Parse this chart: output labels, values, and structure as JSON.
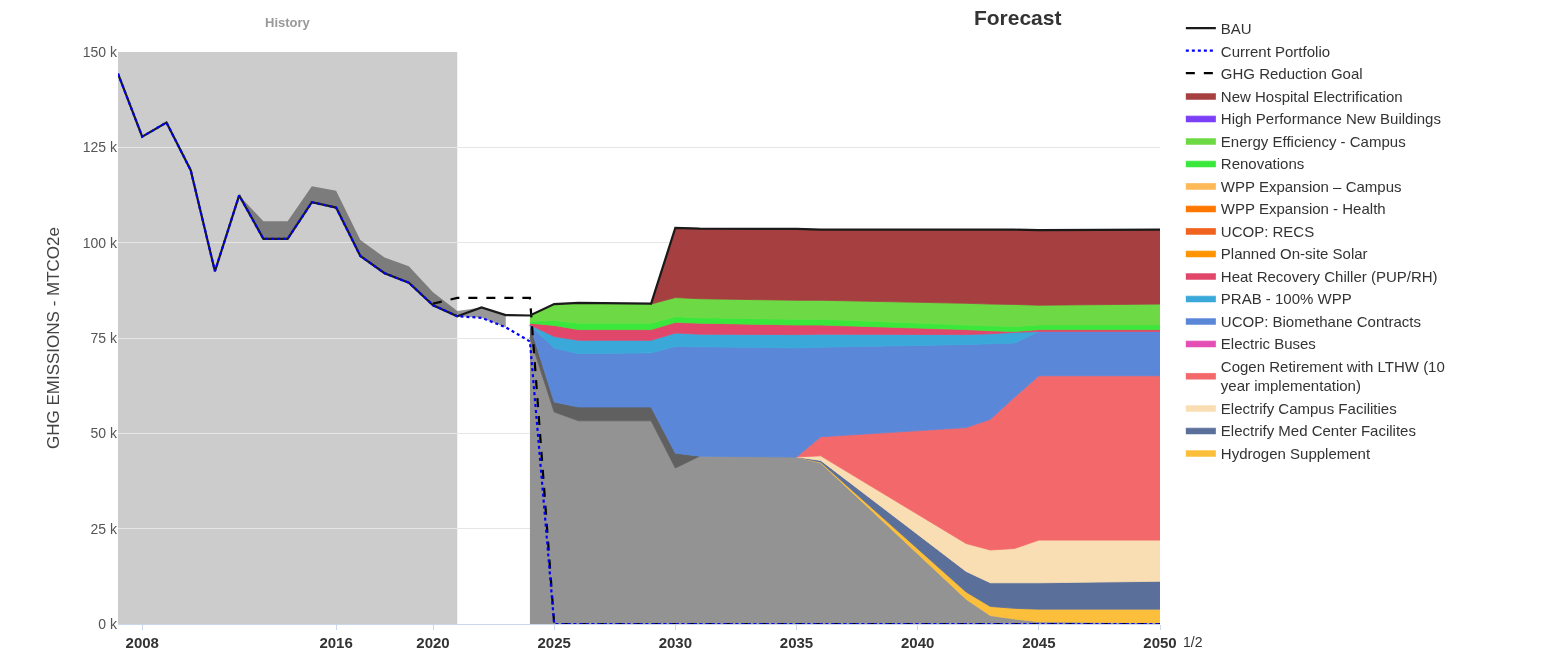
{
  "chart_data": {
    "type": "area",
    "stacked": true,
    "title": "Forecast",
    "ylabel": "GHG EMISSIONS - MTCO2e",
    "x": [
      2024,
      2025,
      2026,
      2029,
      2030,
      2031,
      2035,
      2036,
      2042,
      2043,
      2044,
      2045,
      2050
    ],
    "xlim": [
      2007,
      2050
    ],
    "xticks": [
      2008,
      2016,
      2020,
      2025,
      2030,
      2035,
      2040,
      2045,
      2050
    ],
    "ylim": [
      0,
      150
    ],
    "yticks": [
      {
        "value": 0,
        "label": "0 k"
      },
      {
        "value": 25,
        "label": "25 k"
      },
      {
        "value": 50,
        "label": "50 k"
      },
      {
        "value": 75,
        "label": "75 k"
      },
      {
        "value": 100,
        "label": "100 k"
      },
      {
        "value": 125,
        "label": "125 k"
      },
      {
        "value": 150,
        "label": "150 k"
      }
    ],
    "grid": "y",
    "legend": "right",
    "marker": "none",
    "bands": [
      {
        "axis": "x",
        "from": 2007,
        "to": 2021,
        "label": "History",
        "color": "#cccccc"
      }
    ],
    "annotations": [
      "1/2"
    ],
    "series": [
      {
        "color": "#939393",
        "values": [
          75.1,
          55.6,
          53.3,
          53.3,
          40.9,
          44.0,
          43.8,
          42.2,
          6.5,
          2.2,
          1.3,
          0.6,
          0.3
        ]
      },
      {
        "color": "#606060",
        "values": [
          3.3,
          2.6,
          3.6,
          3.6,
          3.9,
          0,
          null,
          null,
          null,
          null,
          null,
          null,
          null
        ]
      },
      {
        "name": "Hydrogen Supplement",
        "color": "#fcbf3b",
        "values": [
          null,
          null,
          null,
          null,
          null,
          null,
          0,
          0.2,
          1.9,
          2.4,
          2.8,
          3.3,
          3.6
        ]
      },
      {
        "name": "Electrify Med Center Facilites",
        "color": "#5a6f9a",
        "values": [
          null,
          null,
          null,
          null,
          null,
          null,
          0,
          0.5,
          5.4,
          6.2,
          6.7,
          6.9,
          7.3
        ]
      },
      {
        "name": "Electrify Campus Facilities",
        "color": "#fadeb3",
        "values": [
          null,
          null,
          null,
          null,
          null,
          null,
          0,
          1.2,
          7.3,
          8.6,
          9.0,
          11.2,
          10.8
        ]
      },
      {
        "name": "Cogen Retirement with LTHW (10 year implementation)",
        "color": "#f2686b",
        "values": [
          null,
          null,
          null,
          null,
          null,
          null,
          0,
          5.0,
          30.4,
          34.3,
          39.7,
          43.1,
          43.1
        ]
      },
      {
        "name": "Electric Buses",
        "color": "#e44fb5",
        "values": [
          null,
          null,
          null,
          null,
          null,
          null,
          null,
          null,
          null,
          null,
          null,
          null,
          null
        ]
      },
      {
        "name": "UCOP: Biomethane Contracts",
        "color": "#5b87d8",
        "values": [
          0,
          14.2,
          14.0,
          14.2,
          28.0,
          28.7,
          28.6,
          23.5,
          21.8,
          19.8,
          14.2,
          11.6,
          11.6
        ]
      },
      {
        "name": "PRAB - 100% WPP",
        "color": "#3aa9d9",
        "values": [
          0,
          3.0,
          3.5,
          3.3,
          3.5,
          3.3,
          3.5,
          3.4,
          2.6,
          2.6,
          2.8,
          0,
          null
        ]
      },
      {
        "name": "Heat Recovery Chiller (PUP/RH)",
        "color": "#e0476b",
        "values": [
          0.5,
          2.9,
          2.8,
          2.8,
          2.8,
          2.9,
          2.5,
          2.4,
          1.3,
          0.8,
          0.2,
          0.5,
          0.5
        ]
      },
      {
        "name": "Planned On-site Solar",
        "color": "#ff9400",
        "values": [
          null,
          null,
          null,
          null,
          null,
          null,
          null,
          null,
          null,
          null,
          null,
          null,
          null
        ]
      },
      {
        "name": "UCOP: RECS",
        "color": "#f0631e",
        "values": [
          null,
          null,
          null,
          null,
          null,
          null,
          null,
          null,
          null,
          null,
          null,
          null,
          null
        ]
      },
      {
        "name": "WPP Expansion - Health",
        "color": "#ff7700",
        "values": [
          null,
          null,
          null,
          null,
          null,
          null,
          null,
          null,
          null,
          null,
          null,
          null,
          null
        ]
      },
      {
        "name": "WPP Expansion – Campus",
        "color": "#ffb957",
        "values": [
          null,
          null,
          null,
          null,
          null,
          null,
          null,
          null,
          null,
          null,
          null,
          null,
          null
        ]
      },
      {
        "name": "Renovations",
        "color": "#39e83a",
        "values": [
          0.5,
          1.3,
          1.7,
          1.7,
          1.5,
          1.4,
          1.5,
          1.5,
          1.2,
          1.3,
          1.3,
          1.2,
          1.2
        ]
      },
      {
        "name": "Energy Efficiency - Campus",
        "color": "#6dd944",
        "values": [
          1.5,
          4.3,
          5.3,
          5.0,
          5.0,
          5.0,
          5.0,
          5.0,
          5.7,
          5.7,
          5.8,
          5.2,
          5.5
        ]
      },
      {
        "name": "High Performance New Buildings",
        "color": "#7b3ff7",
        "values": [
          null,
          null,
          null,
          null,
          null,
          null,
          null,
          null,
          null,
          null,
          null,
          null,
          null
        ]
      },
      {
        "name": "New Hospital Electrification",
        "color": "#a53f40",
        "values": [
          null,
          null,
          null,
          0,
          18.3,
          18.4,
          18.7,
          18.5,
          19.3,
          19.5,
          19.6,
          19.7,
          19.5
        ]
      },
      {
        "name": "GHG Reduction Goal",
        "type": "line",
        "line_style": "dashed",
        "color": "#000000",
        "x": [
          2020,
          2021,
          2024,
          2025,
          2050
        ],
        "values": [
          84.0,
          85.5,
          85.5,
          0,
          0
        ]
      },
      {
        "name": "BAU",
        "type": "line",
        "line_style": "solid",
        "color": "#1a1a1a",
        "x": [
          2007,
          2008,
          2009,
          2010,
          2011,
          2012,
          2013,
          2014,
          2015,
          2016,
          2017,
          2018,
          2019,
          2020,
          2021,
          2022,
          2023,
          2024,
          2025,
          2026,
          2029,
          2030,
          2031,
          2035,
          2036,
          2042,
          2043,
          2044,
          2045,
          2050
        ],
        "values": [
          144.3,
          127.8,
          131.5,
          119.0,
          92.5,
          112.4,
          101.0,
          101.0,
          110.6,
          109.2,
          96.5,
          92.0,
          89.5,
          83.6,
          80.7,
          83.0,
          81.0,
          80.9,
          83.9,
          84.2,
          84.0,
          103.9,
          103.7,
          103.6,
          103.4,
          103.4,
          103.4,
          103.4,
          103.3,
          103.4
        ],
        "lower": [
          144.3,
          127.8,
          131.5,
          119.0,
          92.5,
          112.4,
          101.0,
          101.0,
          110.6,
          109.2,
          96.5,
          92.0,
          89.5,
          83.6,
          80.7,
          80.3,
          77.8,
          null,
          null,
          null,
          null,
          null,
          null,
          null,
          null,
          null,
          null,
          null,
          null,
          null
        ],
        "upper": [
          144.3,
          127.8,
          131.5,
          119.0,
          92.5,
          112.4,
          105.6,
          105.6,
          114.8,
          113.6,
          100.7,
          96.1,
          93.8,
          87.0,
          82.1,
          83.0,
          81.0,
          null,
          null,
          null,
          null,
          null,
          null,
          null,
          null,
          null,
          null,
          null,
          null,
          null
        ]
      },
      {
        "name": "Current Portfolio",
        "type": "line",
        "line_style": "dotted",
        "color": "#0000ff",
        "x": [
          2007,
          2008,
          2009,
          2010,
          2011,
          2012,
          2013,
          2014,
          2015,
          2016,
          2017,
          2018,
          2019,
          2020,
          2021,
          2022,
          2023,
          2024,
          2025,
          2050
        ],
        "values": [
          144.3,
          127.8,
          131.5,
          119.0,
          92.5,
          112.4,
          101.0,
          101.0,
          110.6,
          109.2,
          96.5,
          92.0,
          89.5,
          83.6,
          80.7,
          80.3,
          77.8,
          74.1,
          0,
          0
        ]
      }
    ]
  }
}
